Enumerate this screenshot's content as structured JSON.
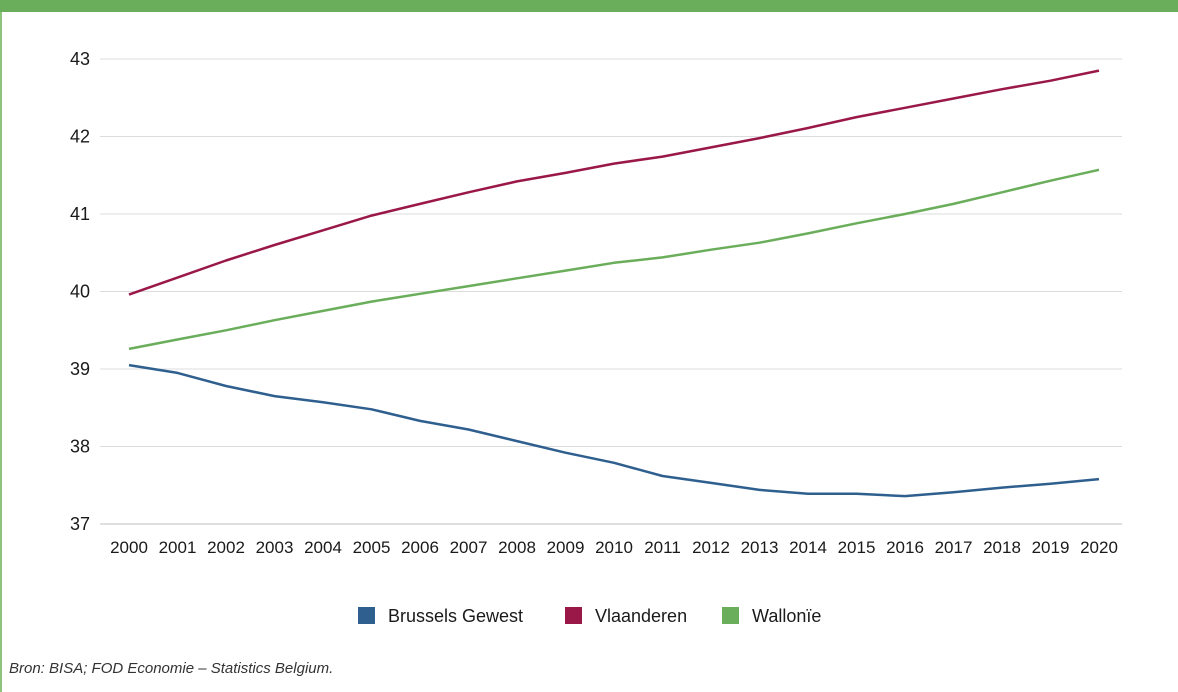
{
  "chart_data": {
    "type": "line",
    "title": "",
    "xlabel": "",
    "ylabel": "",
    "x": [
      "2000",
      "2001",
      "2002",
      "2003",
      "2004",
      "2005",
      "2006",
      "2007",
      "2008",
      "2009",
      "2010",
      "2011",
      "2012",
      "2013",
      "2014",
      "2015",
      "2016",
      "2017",
      "2018",
      "2019",
      "2020"
    ],
    "ylim": [
      37,
      43
    ],
    "yticks": [
      "37",
      "38",
      "39",
      "40",
      "41",
      "42",
      "43"
    ],
    "grid": true,
    "legend_position": "bottom",
    "series": [
      {
        "name": "Brussels Gewest",
        "color": "#2e5f8e",
        "values": [
          39.05,
          38.95,
          38.78,
          38.65,
          38.57,
          38.48,
          38.33,
          38.22,
          38.07,
          37.92,
          37.79,
          37.62,
          37.53,
          37.44,
          37.39,
          37.39,
          37.36,
          37.41,
          37.47,
          37.52,
          37.58
        ]
      },
      {
        "name": "Vlaanderen",
        "color": "#9a1848",
        "values": [
          39.96,
          40.18,
          40.4,
          40.6,
          40.79,
          40.98,
          41.13,
          41.28,
          41.42,
          41.53,
          41.65,
          41.74,
          41.86,
          41.98,
          42.11,
          42.25,
          42.37,
          42.49,
          42.61,
          42.72,
          42.85
        ]
      },
      {
        "name": "Wallonïe",
        "color": "#6aae5b",
        "values": [
          39.26,
          39.38,
          39.5,
          39.63,
          39.75,
          39.87,
          39.97,
          40.07,
          40.17,
          40.27,
          40.37,
          40.44,
          40.54,
          40.63,
          40.75,
          40.88,
          41.0,
          41.13,
          41.28,
          41.43,
          41.57
        ]
      }
    ]
  },
  "source_note": "Bron: BISA; FOD Economie – Statistics Belgium."
}
